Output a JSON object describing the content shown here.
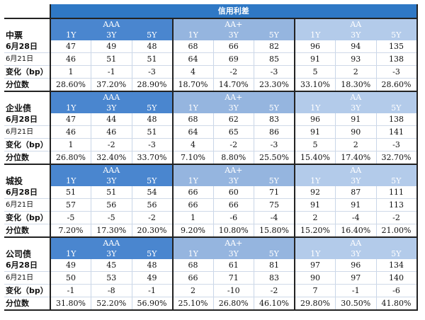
{
  "title": "信用利差",
  "grades": [
    "AAA",
    "AA+",
    "AA"
  ],
  "tenors": [
    "1Y",
    "3Y",
    "5Y"
  ],
  "row_labels": {
    "date1": "6月28日",
    "date2": "6月21日",
    "change": "变化（bp）",
    "percentile": "分位数"
  },
  "sections": [
    {
      "name": "中票",
      "date1": [
        "47",
        "49",
        "48",
        "68",
        "66",
        "82",
        "96",
        "94",
        "135"
      ],
      "date2": [
        "46",
        "51",
        "51",
        "64",
        "69",
        "85",
        "91",
        "93",
        "138"
      ],
      "change": [
        "1",
        "-1",
        "-3",
        "4",
        "-2",
        "-3",
        "5",
        "2",
        "-3"
      ],
      "percentile": [
        "28.60%",
        "37.20%",
        "28.90%",
        "18.70%",
        "14.70%",
        "23.30%",
        "33.10%",
        "18.30%",
        "28.60%"
      ]
    },
    {
      "name": "企业债",
      "date1": [
        "47",
        "44",
        "48",
        "68",
        "62",
        "83",
        "96",
        "91",
        "138"
      ],
      "date2": [
        "46",
        "46",
        "51",
        "64",
        "65",
        "86",
        "91",
        "90",
        "141"
      ],
      "change": [
        "1",
        "-2",
        "-3",
        "4",
        "-2",
        "-3",
        "5",
        "2",
        "-3"
      ],
      "percentile": [
        "26.80%",
        "32.40%",
        "33.70%",
        "7.10%",
        "8.80%",
        "25.50%",
        "15.40%",
        "17.40%",
        "32.70%"
      ]
    },
    {
      "name": "城投",
      "date1": [
        "51",
        "51",
        "54",
        "66",
        "60",
        "71",
        "92",
        "87",
        "111"
      ],
      "date2": [
        "57",
        "56",
        "56",
        "66",
        "66",
        "75",
        "91",
        "91",
        "113"
      ],
      "change": [
        "-5",
        "-5",
        "-2",
        "1",
        "-6",
        "-4",
        "2",
        "-4",
        "-2"
      ],
      "percentile": [
        "7.20%",
        "17.30%",
        "20.30%",
        "9.20%",
        "10.80%",
        "15.80%",
        "15.20%",
        "16.40%",
        "21.00%"
      ]
    },
    {
      "name": "公司债",
      "date1": [
        "49",
        "45",
        "48",
        "68",
        "61",
        "81",
        "97",
        "96",
        "134"
      ],
      "date2": [
        "50",
        "53",
        "49",
        "66",
        "71",
        "83",
        "90",
        "97",
        "140"
      ],
      "change": [
        "-1",
        "-8",
        "-1",
        "2",
        "-10",
        "-2",
        "7",
        "-1",
        "-6"
      ],
      "percentile": [
        "31.80%",
        "52.20%",
        "56.90%",
        "25.10%",
        "26.80%",
        "46.10%",
        "29.80%",
        "30.50%",
        "41.80%"
      ]
    }
  ]
}
